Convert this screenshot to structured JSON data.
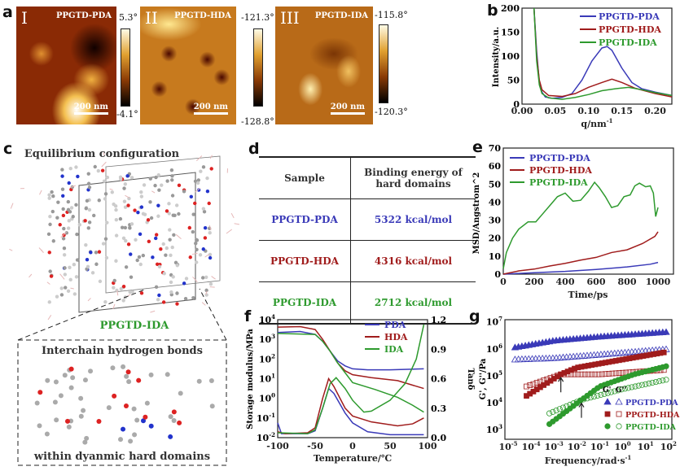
{
  "panel_labels": {
    "a": "a",
    "b": "b",
    "c": "c",
    "d": "d",
    "e": "e",
    "f": "f",
    "g": "g"
  },
  "afm": [
    {
      "roman": "I",
      "name": "PPGTD-PDA",
      "scale": "200 nm",
      "max": "5.3°",
      "min": "-4.1°"
    },
    {
      "roman": "II",
      "name": "PPGTD-HDA",
      "scale": "200 nm",
      "max": "-121.3°",
      "min": "-128.8°"
    },
    {
      "roman": "III",
      "name": "PPGTD-IDA",
      "scale": "200 nm",
      "max": "-115.8°",
      "min": "-120.3°"
    }
  ],
  "panel_c": {
    "title": "Equilibrium configuration",
    "sample": "PPGTD-IDA",
    "inset_top": "Interchain hydrogen bonds",
    "inset_bottom": "within dyanmic hard domains"
  },
  "table_d": {
    "headers": [
      "Sample",
      "Binding energy of hard domains"
    ],
    "rows": [
      {
        "sample": "PPGTD-PDA",
        "energy": "5322 kcal/mol"
      },
      {
        "sample": "PPGTD-HDA",
        "energy": "4316 kcal/mol"
      },
      {
        "sample": "PPGTD-IDA",
        "energy": "2712 kcal/mol"
      }
    ]
  },
  "colors": {
    "PDA": "#3a3ab8",
    "HDA": "#a01c1c",
    "IDA": "#2e9a2e"
  },
  "chart_data": [
    {
      "id": "b",
      "type": "line",
      "xlabel": "q/nm",
      "xlabel_sup": "-1",
      "ylabel": "Intensity/a.u.",
      "xlim": [
        0,
        0.225
      ],
      "ylim": [
        0,
        200
      ],
      "xticks": [
        "0.00",
        "0.05",
        "0.10",
        "0.15",
        "0.20"
      ],
      "xtick_vals": [
        0,
        0.05,
        0.1,
        0.15,
        0.2
      ],
      "yticks": [
        "0",
        "50",
        "100",
        "150",
        "200"
      ],
      "ytick_vals": [
        0,
        50,
        100,
        150,
        200
      ],
      "legend": "top-right",
      "series": [
        {
          "name": "PPGTD-PDA",
          "color": "PDA",
          "points": [
            [
              0.018,
              200
            ],
            [
              0.022,
              110
            ],
            [
              0.026,
              45
            ],
            [
              0.03,
              25
            ],
            [
              0.035,
              15
            ],
            [
              0.045,
              12
            ],
            [
              0.06,
              14
            ],
            [
              0.075,
              22
            ],
            [
              0.09,
              50
            ],
            [
              0.105,
              90
            ],
            [
              0.12,
              117
            ],
            [
              0.128,
              120
            ],
            [
              0.135,
              112
            ],
            [
              0.15,
              75
            ],
            [
              0.165,
              45
            ],
            [
              0.18,
              32
            ],
            [
              0.2,
              25
            ],
            [
              0.225,
              18
            ]
          ]
        },
        {
          "name": "PPGTD-HDA",
          "color": "HDA",
          "points": [
            [
              0.018,
              200
            ],
            [
              0.022,
              100
            ],
            [
              0.026,
              50
            ],
            [
              0.03,
              30
            ],
            [
              0.04,
              18
            ],
            [
              0.06,
              16
            ],
            [
              0.08,
              22
            ],
            [
              0.1,
              35
            ],
            [
              0.12,
              45
            ],
            [
              0.135,
              52
            ],
            [
              0.15,
              45
            ],
            [
              0.17,
              33
            ],
            [
              0.2,
              22
            ],
            [
              0.225,
              15
            ]
          ]
        },
        {
          "name": "PPGTD-IDA",
          "color": "IDA",
          "points": [
            [
              0.018,
              200
            ],
            [
              0.022,
              90
            ],
            [
              0.026,
              40
            ],
            [
              0.03,
              22
            ],
            [
              0.04,
              13
            ],
            [
              0.06,
              10
            ],
            [
              0.08,
              14
            ],
            [
              0.1,
              20
            ],
            [
              0.12,
              28
            ],
            [
              0.14,
              32
            ],
            [
              0.16,
              35
            ],
            [
              0.18,
              30
            ],
            [
              0.2,
              24
            ],
            [
              0.225,
              18
            ]
          ]
        }
      ]
    },
    {
      "id": "e",
      "type": "line",
      "xlabel": "Time/ps",
      "ylabel": "MSD/Angstrom^2",
      "xlim": [
        0,
        1100
      ],
      "ylim": [
        0,
        70
      ],
      "xticks": [
        "0",
        "200",
        "400",
        "600",
        "800",
        "1000"
      ],
      "xtick_vals": [
        0,
        200,
        400,
        600,
        800,
        1000
      ],
      "yticks": [
        "0",
        "10",
        "20",
        "30",
        "40",
        "50",
        "60",
        "70"
      ],
      "ytick_vals": [
        0,
        10,
        20,
        30,
        40,
        50,
        60,
        70
      ],
      "legend": "top-left",
      "series": [
        {
          "name": "PPGTD-PDA",
          "color": "PDA",
          "points": [
            [
              0,
              0
            ],
            [
              200,
              0.8
            ],
            [
              400,
              1.5
            ],
            [
              600,
              2.6
            ],
            [
              800,
              4
            ],
            [
              950,
              5.5
            ],
            [
              1000,
              6.5
            ]
          ]
        },
        {
          "name": "PPGTD-HDA",
          "color": "HDA",
          "points": [
            [
              0,
              0
            ],
            [
              100,
              1.8
            ],
            [
              200,
              2.8
            ],
            [
              300,
              4.5
            ],
            [
              400,
              6
            ],
            [
              500,
              7.8
            ],
            [
              600,
              9.3
            ],
            [
              700,
              12
            ],
            [
              800,
              13.5
            ],
            [
              900,
              17
            ],
            [
              980,
              21
            ],
            [
              1000,
              23.5
            ]
          ]
        },
        {
          "name": "PPGTD-IDA",
          "color": "IDA",
          "points": [
            [
              0,
              3
            ],
            [
              20,
              12
            ],
            [
              60,
              20
            ],
            [
              100,
              25
            ],
            [
              160,
              29
            ],
            [
              210,
              29
            ],
            [
              250,
              33
            ],
            [
              300,
              38
            ],
            [
              350,
              43
            ],
            [
              400,
              45
            ],
            [
              450,
              40.5
            ],
            [
              500,
              41
            ],
            [
              550,
              46
            ],
            [
              590,
              51
            ],
            [
              620,
              48
            ],
            [
              660,
              43
            ],
            [
              700,
              37
            ],
            [
              740,
              38
            ],
            [
              780,
              43
            ],
            [
              820,
              44
            ],
            [
              850,
              49
            ],
            [
              880,
              50.5
            ],
            [
              920,
              48.5
            ],
            [
              950,
              49
            ],
            [
              970,
              45
            ],
            [
              985,
              32
            ],
            [
              1000,
              37
            ]
          ]
        }
      ]
    },
    {
      "id": "f",
      "type": "line",
      "xlabel": "Temperature/℃",
      "ylabel": "Storage modulus/MPa",
      "ylabel_right": "Tanδ",
      "xlim": [
        -100,
        100
      ],
      "ylim_log10": [
        -2,
        4
      ],
      "ylim_right": [
        0,
        1.2
      ],
      "xticks": [
        "-100",
        "-50",
        "0",
        "50",
        "100"
      ],
      "xtick_vals": [
        -100,
        -50,
        0,
        50,
        100
      ],
      "yticks_exp": [
        "-2",
        "-1",
        "0",
        "1",
        "2",
        "3",
        "4"
      ],
      "yticks_right": [
        "0.0",
        "0.3",
        "0.6",
        "0.9",
        "1.2"
      ],
      "legend": "top-right",
      "series": [
        {
          "name": "PDA",
          "color": "PDA",
          "axis": "left_log10",
          "points": [
            [
              -100,
              3.35
            ],
            [
              -70,
              3.4
            ],
            [
              -50,
              3.25
            ],
            [
              -40,
              2.9
            ],
            [
              -30,
              2.4
            ],
            [
              -20,
              1.9
            ],
            [
              -10,
              1.65
            ],
            [
              0,
              1.5
            ],
            [
              20,
              1.45
            ],
            [
              50,
              1.45
            ],
            [
              95,
              1.5
            ]
          ]
        },
        {
          "name": "HDA",
          "color": "HDA",
          "axis": "left_log10",
          "points": [
            [
              -100,
              3.62
            ],
            [
              -70,
              3.65
            ],
            [
              -50,
              3.5
            ],
            [
              -40,
              3.0
            ],
            [
              -30,
              2.4
            ],
            [
              -20,
              1.8
            ],
            [
              -10,
              1.4
            ],
            [
              0,
              1.2
            ],
            [
              25,
              1.05
            ],
            [
              60,
              0.9
            ],
            [
              95,
              0.5
            ]
          ]
        },
        {
          "name": "IDA",
          "color": "IDA",
          "axis": "left_log10",
          "points": [
            [
              -100,
              3.3
            ],
            [
              -50,
              3.25
            ],
            [
              -40,
              2.9
            ],
            [
              -30,
              2.4
            ],
            [
              -20,
              1.8
            ],
            [
              -10,
              1.3
            ],
            [
              0,
              0.8
            ],
            [
              30,
              0.45
            ],
            [
              60,
              0.05
            ],
            [
              80,
              -0.35
            ],
            [
              95,
              -0.7
            ]
          ]
        },
        {
          "name": "PDA tanδ",
          "color": "PDA",
          "axis": "right",
          "points": [
            [
              -100,
              0.15
            ],
            [
              -95,
              0.04
            ],
            [
              -60,
              0.04
            ],
            [
              -50,
              0.07
            ],
            [
              -40,
              0.3
            ],
            [
              -32,
              0.5
            ],
            [
              -25,
              0.45
            ],
            [
              -10,
              0.25
            ],
            [
              0,
              0.15
            ],
            [
              20,
              0.06
            ],
            [
              50,
              0.03
            ],
            [
              95,
              0.03
            ]
          ]
        },
        {
          "name": "HDA tanδ",
          "color": "HDA",
          "axis": "right",
          "points": [
            [
              -100,
              0.06
            ],
            [
              -90,
              0.04
            ],
            [
              -60,
              0.05
            ],
            [
              -50,
              0.1
            ],
            [
              -40,
              0.4
            ],
            [
              -32,
              0.6
            ],
            [
              -25,
              0.52
            ],
            [
              -10,
              0.3
            ],
            [
              0,
              0.22
            ],
            [
              25,
              0.16
            ],
            [
              60,
              0.12
            ],
            [
              80,
              0.14
            ],
            [
              95,
              0.2
            ]
          ]
        },
        {
          "name": "IDA tanδ",
          "color": "IDA",
          "axis": "right",
          "points": [
            [
              -100,
              0.05
            ],
            [
              -60,
              0.04
            ],
            [
              -50,
              0.08
            ],
            [
              -40,
              0.3
            ],
            [
              -30,
              0.55
            ],
            [
              -22,
              0.61
            ],
            [
              -10,
              0.5
            ],
            [
              0,
              0.38
            ],
            [
              15,
              0.26
            ],
            [
              25,
              0.27
            ],
            [
              50,
              0.38
            ],
            [
              70,
              0.55
            ],
            [
              85,
              0.8
            ],
            [
              95,
              1.15
            ]
          ]
        }
      ]
    },
    {
      "id": "g",
      "type": "scatter",
      "xlabel": "Frequency/rad·s",
      "xlabel_sup": "-1",
      "ylabel": "G', G''/Pa",
      "xlim_log10": [
        -5,
        2
      ],
      "ylim_log10": [
        3,
        7
      ],
      "xticks_exp": [
        "-5",
        "-4",
        "-3",
        "-2",
        "-1",
        "0",
        "1",
        "2"
      ],
      "yticks_exp": [
        "3",
        "4",
        "5",
        "6",
        "7"
      ],
      "legend_header": [
        "G'",
        "G''"
      ],
      "legend": "bottom-right",
      "series": [
        {
          "name": "PPGTD-PDA",
          "color": "PDA",
          "marker": "triangle",
          "Gp": [
            [
              -4.7,
              6.05
            ],
            [
              -3,
              6.3
            ],
            [
              -1,
              6.45
            ],
            [
              1.9,
              6.62
            ]
          ],
          "Gpp": [
            [
              -4.7,
              5.6
            ],
            [
              -3,
              5.65
            ],
            [
              -1,
              5.78
            ],
            [
              1.9,
              5.98
            ]
          ]
        },
        {
          "name": "PPGTD-HDA",
          "color": "HDA",
          "marker": "square",
          "Gp": [
            [
              -4.2,
              4.25
            ],
            [
              -2.7,
              5.05
            ],
            [
              -2,
              5.3
            ],
            [
              0,
              5.6
            ],
            [
              1.9,
              5.88
            ]
          ],
          "Gpp": [
            [
              -4.2,
              4.6
            ],
            [
              -2.7,
              5.05
            ],
            [
              -1,
              5.05
            ],
            [
              1.9,
              5.22
            ]
          ]
        },
        {
          "name": "PPGTD-IDA",
          "color": "IDA",
          "marker": "circle",
          "Gp": [
            [
              -3.2,
              3.2
            ],
            [
              -1.8,
              4.1
            ],
            [
              -1,
              4.6
            ],
            [
              0.5,
              5.05
            ],
            [
              1.9,
              5.35
            ]
          ],
          "Gpp": [
            [
              -3.2,
              3.6
            ],
            [
              -1.8,
              4.1
            ],
            [
              0,
              4.5
            ],
            [
              1.9,
              4.85
            ]
          ]
        }
      ]
    }
  ]
}
